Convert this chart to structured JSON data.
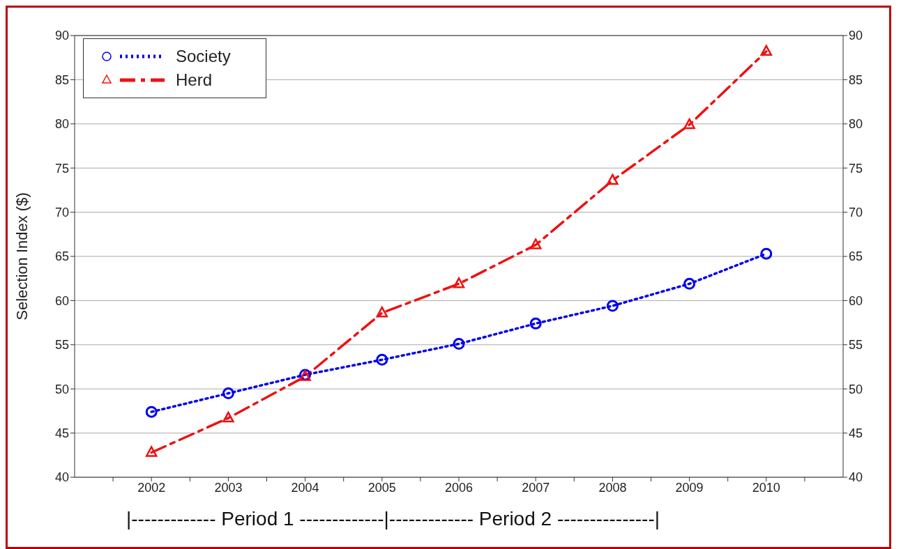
{
  "chart_data": {
    "type": "line",
    "ylabel": "Selection Index ($)",
    "x": [
      2002,
      2003,
      2004,
      2005,
      2006,
      2007,
      2008,
      2009,
      2010
    ],
    "series": [
      {
        "name": "Society",
        "color": "#0000ee",
        "marker": "circle",
        "line_style": "dotted",
        "values": [
          47.4,
          49.5,
          51.6,
          53.3,
          55.1,
          57.4,
          59.4,
          61.9,
          65.3
        ]
      },
      {
        "name": "Herd",
        "color": "#ee1111",
        "marker": "triangle",
        "line_style": "dashed",
        "values": [
          42.8,
          46.7,
          51.4,
          58.6,
          61.9,
          66.3,
          73.6,
          79.9,
          88.2
        ]
      }
    ],
    "xlim": [
      2001,
      2011
    ],
    "xticks": [
      {
        "value": 2001.5,
        "label": null
      },
      2002,
      {
        "value": 2002.5,
        "label": null
      },
      2003,
      {
        "value": 2003.5,
        "label": null
      },
      2004,
      {
        "value": 2004.5,
        "label": null
      },
      2005,
      {
        "value": 2005.5,
        "label": null
      },
      2006,
      {
        "value": 2006.5,
        "label": null
      },
      2007,
      {
        "value": 2007.5,
        "label": null
      },
      2008,
      {
        "value": 2008.5,
        "label": null
      },
      2009,
      {
        "value": 2009.5,
        "label": null
      },
      2010,
      {
        "value": 2010.5,
        "label": null
      }
    ],
    "ylim": [
      40,
      90
    ],
    "yticks": [
      40,
      45,
      50,
      55,
      60,
      65,
      70,
      75,
      80,
      85,
      90
    ],
    "y2lim": [
      40,
      90
    ],
    "y2ticks": [
      40,
      45,
      50,
      55,
      60,
      65,
      70,
      75,
      80,
      85,
      90
    ],
    "grid": "y",
    "legend": "top left",
    "annotations": [
      "|------------- Period 1 -------------|------------- Period 2 ---------------|"
    ]
  }
}
